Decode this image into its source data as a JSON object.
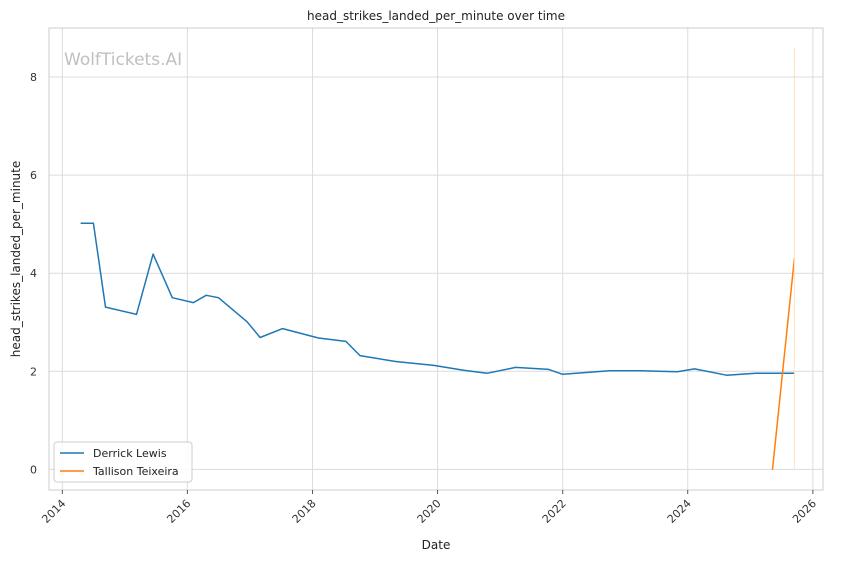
{
  "chart_data": {
    "type": "line",
    "title": "head_strikes_landed_per_minute over time",
    "xlabel": "Date",
    "ylabel": "head_strikes_landed_per_minute",
    "watermark": "WolfTickets.AI",
    "xlim": [
      "2013-10-15",
      "2026-03-01"
    ],
    "ylim": [
      -0.42,
      9.0
    ],
    "x_ticks": [
      "2014",
      "2016",
      "2018",
      "2020",
      "2022",
      "2024",
      "2026"
    ],
    "y_ticks": [
      0,
      2,
      4,
      6,
      8
    ],
    "grid": true,
    "legend_position": "lower-left",
    "series": [
      {
        "name": "Derrick Lewis",
        "color": "#1f77b4",
        "points": [
          [
            "2014-04-20",
            5.02
          ],
          [
            "2014-07-01",
            5.02
          ],
          [
            "2014-09-10",
            3.31
          ],
          [
            "2015-03-10",
            3.16
          ],
          [
            "2015-06-15",
            4.39
          ],
          [
            "2015-10-05",
            3.5
          ],
          [
            "2016-02-05",
            3.4
          ],
          [
            "2016-04-20",
            3.55
          ],
          [
            "2016-07-01",
            3.5
          ],
          [
            "2016-12-15",
            3.01
          ],
          [
            "2017-03-01",
            2.69
          ],
          [
            "2017-07-10",
            2.87
          ],
          [
            "2018-02-05",
            2.68
          ],
          [
            "2018-07-15",
            2.61
          ],
          [
            "2018-10-05",
            2.32
          ],
          [
            "2019-05-01",
            2.2
          ],
          [
            "2019-12-10",
            2.12
          ],
          [
            "2020-06-01",
            2.02
          ],
          [
            "2020-10-15",
            1.96
          ],
          [
            "2021-04-01",
            2.08
          ],
          [
            "2021-10-10",
            2.04
          ],
          [
            "2022-01-01",
            1.94
          ],
          [
            "2022-10-01",
            2.01
          ],
          [
            "2023-04-01",
            2.01
          ],
          [
            "2023-11-01",
            1.99
          ],
          [
            "2024-02-10",
            2.05
          ],
          [
            "2024-08-15",
            1.92
          ],
          [
            "2025-02-01",
            1.96
          ],
          [
            "2025-06-01",
            1.96
          ],
          [
            "2025-09-15",
            1.96
          ]
        ]
      },
      {
        "name": "Tallison Teixeira",
        "color": "#ff7f0e",
        "points": [
          [
            "2025-05-10",
            0.0
          ],
          [
            "2025-09-15",
            4.3
          ]
        ]
      }
    ]
  }
}
